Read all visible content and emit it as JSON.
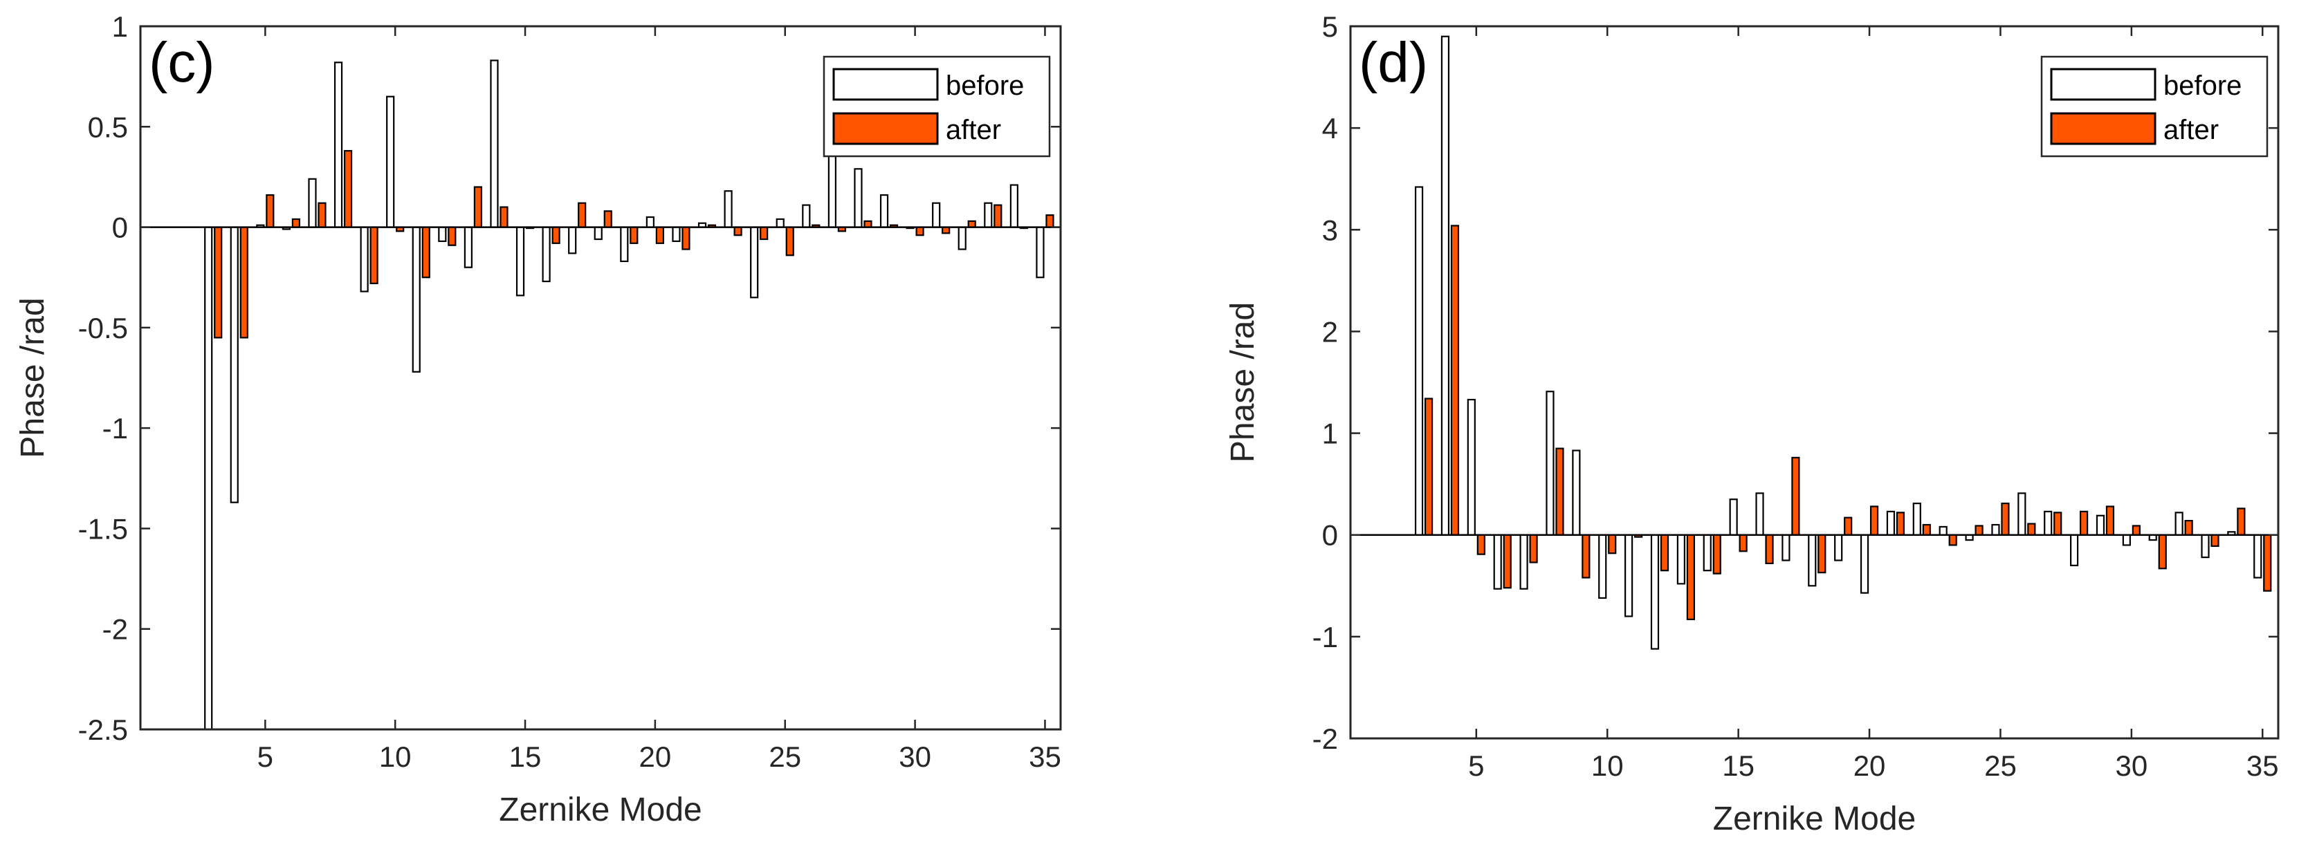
{
  "colors": {
    "before_fill": "#ffffff",
    "after_fill": "#ff5500",
    "edge": "#000000",
    "axis": "#262626"
  },
  "chart_data": [
    {
      "type": "bar",
      "panel_label": "(c)",
      "xlabel": "Zernike Mode",
      "ylabel": "Phase /rad",
      "xlim": [
        0.2,
        35.6
      ],
      "ylim": [
        -2.5,
        1
      ],
      "xticks": [
        5,
        10,
        15,
        20,
        25,
        30,
        35
      ],
      "yticks": [
        -2.5,
        -2,
        -1.5,
        -1,
        -0.5,
        0,
        0.5,
        1
      ],
      "legend": [
        "before",
        "after"
      ],
      "legend_position": "top-right",
      "modes": [
        3,
        4,
        5,
        6,
        7,
        8,
        9,
        10,
        11,
        12,
        13,
        14,
        15,
        16,
        17,
        18,
        19,
        20,
        21,
        22,
        23,
        24,
        25,
        26,
        27,
        28,
        29,
        30,
        31,
        32,
        33,
        34,
        35
      ],
      "series": [
        {
          "name": "before",
          "values": [
            -2.5,
            -1.37,
            0.01,
            -0.01,
            0.24,
            0.82,
            -0.32,
            0.65,
            -0.72,
            -0.07,
            -0.2,
            0.83,
            -0.34,
            -0.27,
            -0.13,
            -0.06,
            -0.17,
            0.05,
            -0.07,
            0.02,
            0.18,
            -0.35,
            0.04,
            0.11,
            0.36,
            0.29,
            0.16,
            0.0,
            0.12,
            -0.11,
            0.12,
            0.21,
            -0.25
          ]
        },
        {
          "name": "after",
          "values": [
            -0.55,
            -0.55,
            0.16,
            0.04,
            0.12,
            0.38,
            -0.28,
            -0.02,
            -0.25,
            -0.09,
            0.2,
            0.1,
            0.0,
            -0.08,
            0.12,
            0.08,
            -0.08,
            -0.08,
            -0.11,
            0.01,
            -0.04,
            -0.06,
            -0.14,
            0.01,
            -0.02,
            0.03,
            0.01,
            -0.04,
            -0.03,
            0.03,
            0.11,
            0.0,
            0.06
          ]
        }
      ]
    },
    {
      "type": "bar",
      "panel_label": "(d)",
      "xlabel": "Zernike Mode",
      "ylabel": "Phase /rad",
      "xlim": [
        0.2,
        35.6
      ],
      "ylim": [
        -2,
        5
      ],
      "xticks": [
        5,
        10,
        15,
        20,
        25,
        30,
        35
      ],
      "yticks": [
        -2,
        -1,
        0,
        1,
        2,
        3,
        4,
        5
      ],
      "legend": [
        "before",
        "after"
      ],
      "legend_position": "top-right",
      "modes": [
        3,
        4,
        5,
        6,
        7,
        8,
        9,
        10,
        11,
        12,
        13,
        14,
        15,
        16,
        17,
        18,
        19,
        20,
        21,
        22,
        23,
        24,
        25,
        26,
        27,
        28,
        29,
        30,
        31,
        32,
        33,
        34,
        35
      ],
      "series": [
        {
          "name": "before",
          "values": [
            3.42,
            4.9,
            1.33,
            -0.53,
            -0.53,
            1.41,
            0.83,
            -0.62,
            -0.8,
            -1.12,
            -0.48,
            -0.35,
            0.35,
            0.41,
            -0.25,
            -0.5,
            -0.25,
            -0.57,
            0.23,
            0.31,
            0.08,
            -0.05,
            0.1,
            0.41,
            0.23,
            -0.3,
            0.19,
            -0.1,
            -0.05,
            0.22,
            -0.22,
            0.03,
            -0.42
          ]
        },
        {
          "name": "after",
          "values": [
            1.34,
            3.04,
            -0.19,
            -0.52,
            -0.27,
            0.85,
            -0.42,
            -0.18,
            -0.02,
            -0.35,
            -0.83,
            -0.38,
            -0.16,
            -0.28,
            0.76,
            -0.37,
            0.17,
            0.28,
            0.22,
            0.1,
            -0.1,
            0.09,
            0.31,
            0.11,
            0.22,
            0.23,
            0.28,
            0.09,
            -0.33,
            0.14,
            -0.11,
            0.26,
            -0.55
          ]
        }
      ]
    }
  ]
}
